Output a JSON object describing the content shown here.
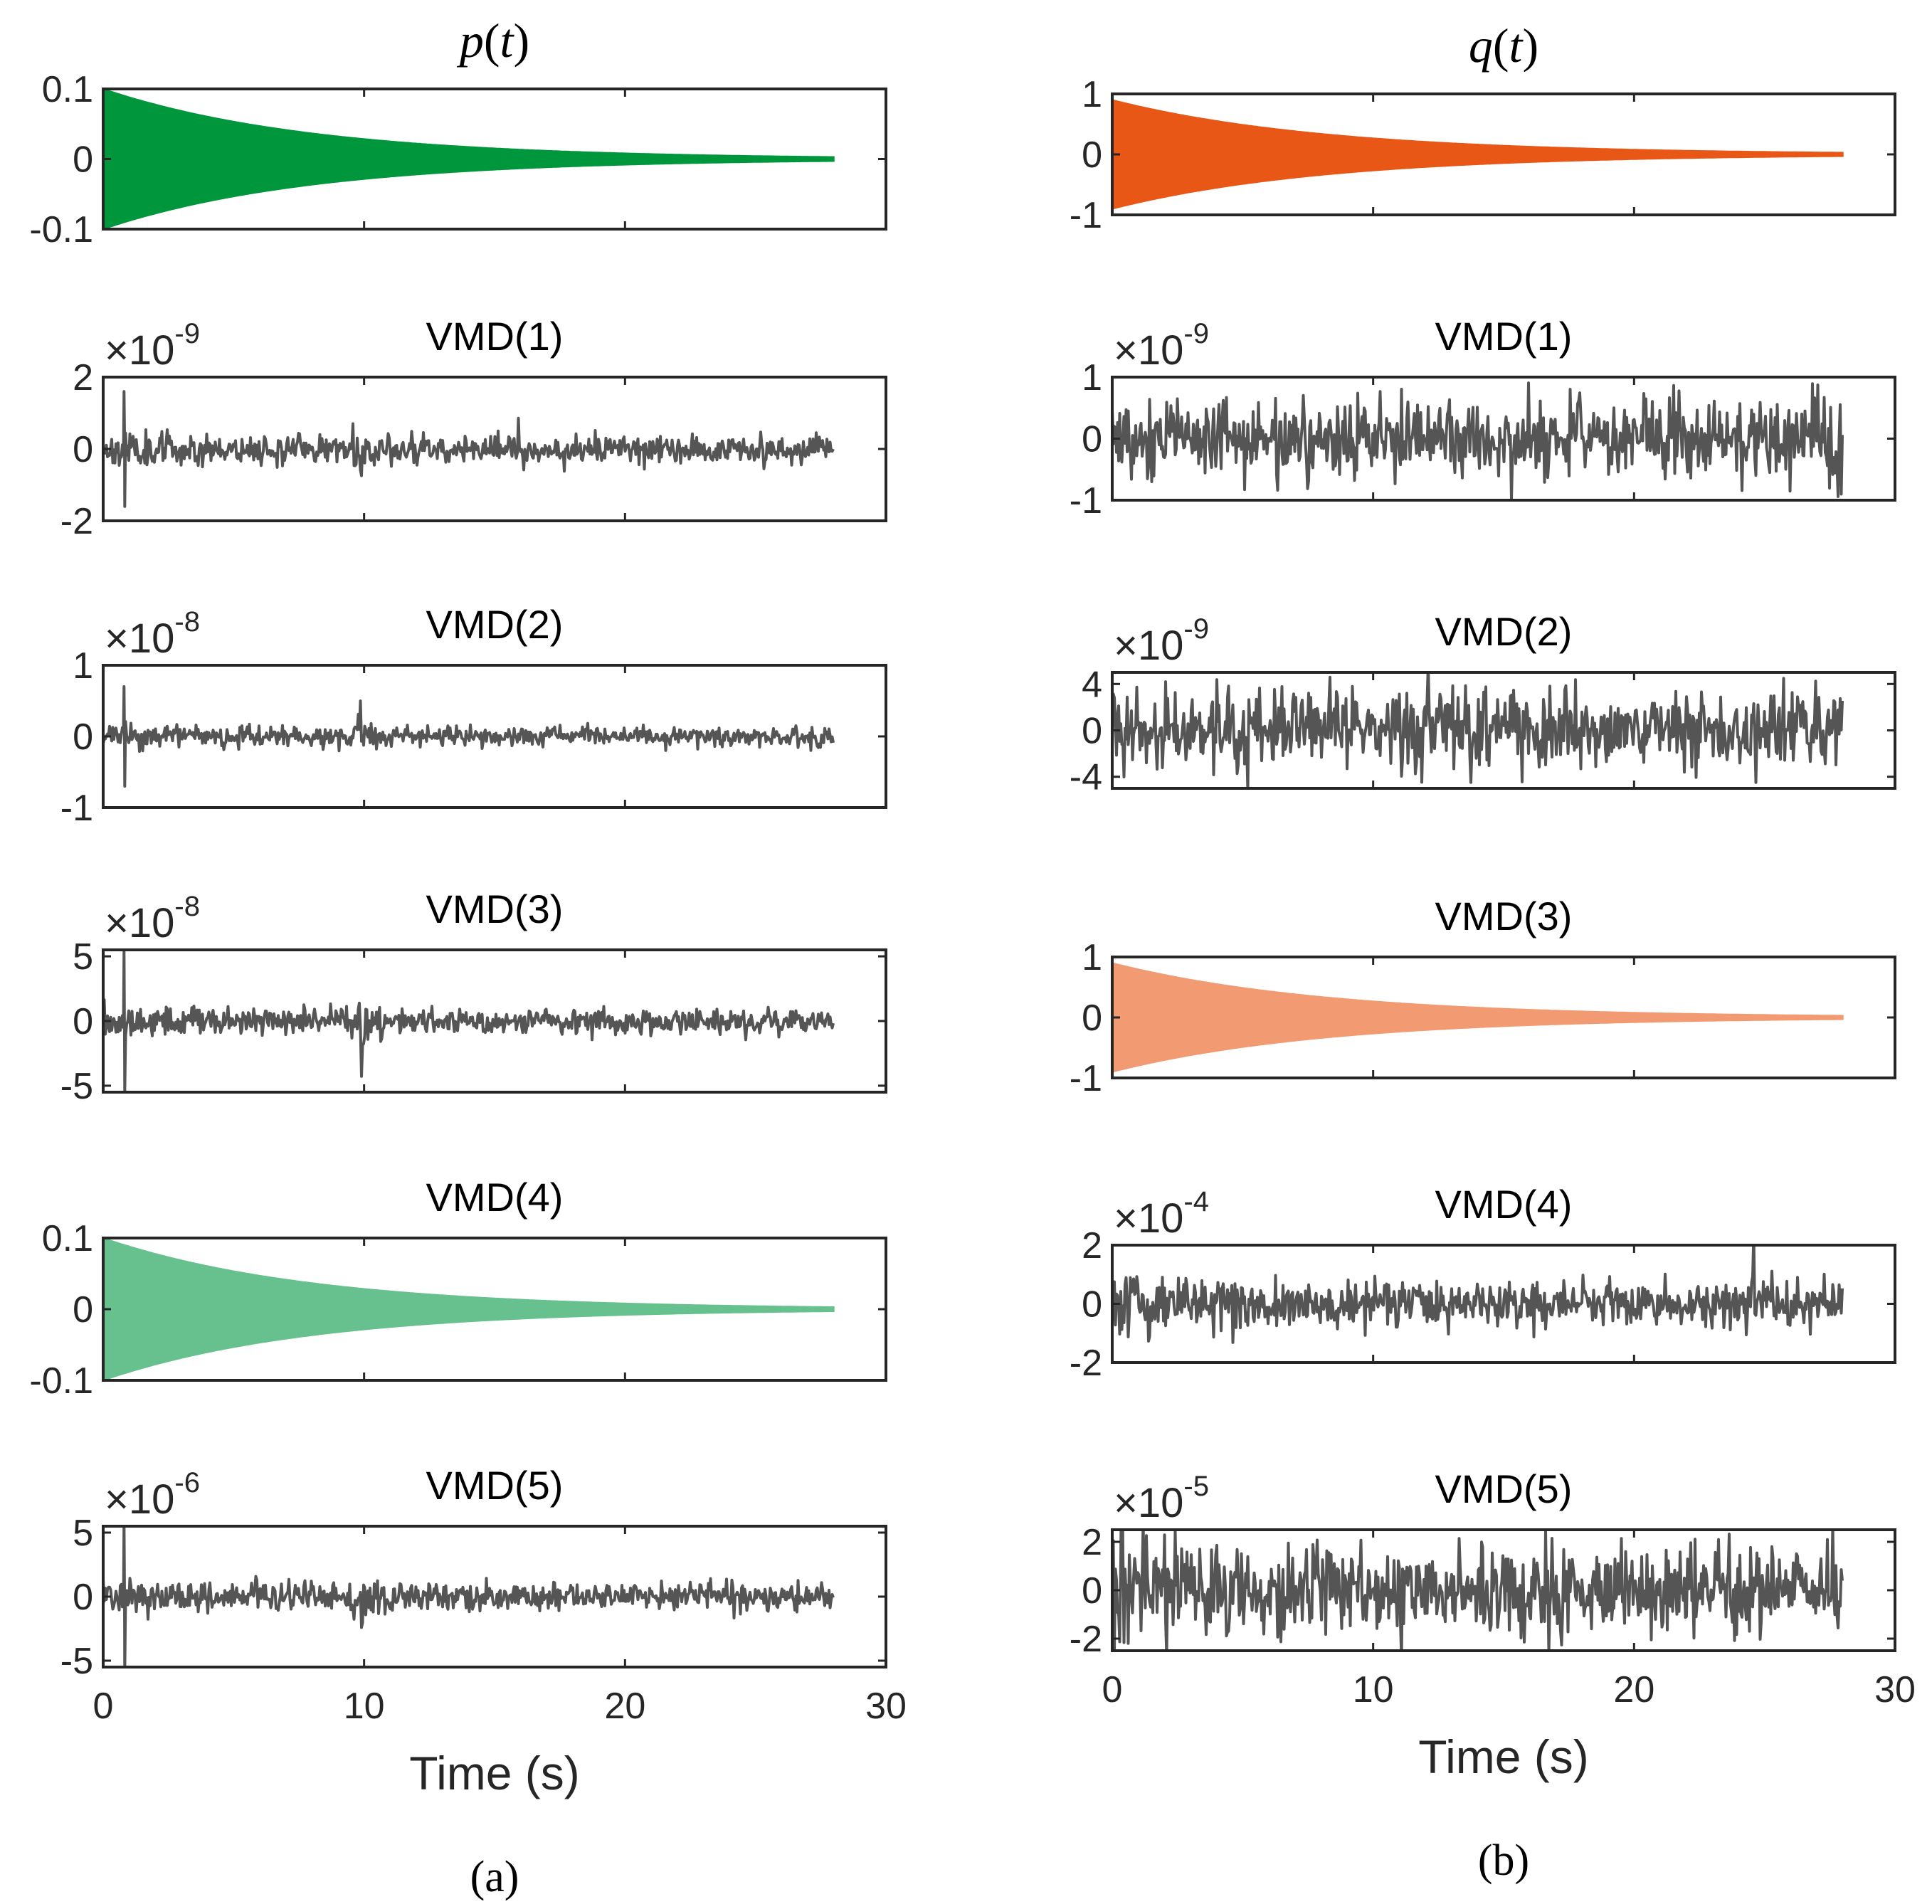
{
  "chart_data": [
    {
      "id": "a-p",
      "column": "a",
      "type": "line",
      "title": "p(t)",
      "title_style": "math",
      "signal": "decay",
      "color": "#00963C",
      "amplitude": 0.1,
      "envelope_end": 0.003,
      "t_end": 28,
      "ylim": [
        -0.1,
        0.1
      ],
      "yticks": [
        {
          "v": 0.1,
          "label": "0.1"
        },
        {
          "v": 0,
          "label": "0"
        },
        {
          "v": -0.1,
          "label": "-0.1"
        }
      ],
      "xlim": [
        0,
        30
      ],
      "xticks": [
        0,
        10,
        20,
        30
      ],
      "xticklabels": false
    },
    {
      "id": "a-vmd1",
      "column": "a",
      "type": "line",
      "title": "VMD(1)",
      "scale_factor": {
        "base": "×10",
        "exp": "-9"
      },
      "signal": "noise",
      "color": "#555555",
      "base_amp": 0.35,
      "decay": 0.3,
      "burst_at": 9.8,
      "spike_at": 0.8,
      "spike": 1.6,
      "t_end": 28,
      "seed": 11,
      "ylim": [
        -2,
        2
      ],
      "yticks": [
        {
          "v": 2,
          "label": "2"
        },
        {
          "v": 0,
          "label": "0"
        },
        {
          "v": -2,
          "label": "-2"
        }
      ],
      "xlim": [
        0,
        30
      ],
      "xticks": [
        0,
        10,
        20,
        30
      ],
      "xticklabels": false
    },
    {
      "id": "a-vmd2",
      "column": "a",
      "type": "line",
      "title": "VMD(2)",
      "scale_factor": {
        "base": "×10",
        "exp": "-8"
      },
      "signal": "noise",
      "color": "#555555",
      "base_amp": 0.12,
      "decay": 0.35,
      "burst_at": 9.8,
      "spike_at": 0.8,
      "spike": 0.7,
      "t_end": 28,
      "seed": 23,
      "ylim": [
        -1,
        1
      ],
      "yticks": [
        {
          "v": 1,
          "label": "1"
        },
        {
          "v": 0,
          "label": "0"
        },
        {
          "v": -1,
          "label": "-1"
        }
      ],
      "xlim": [
        0,
        30
      ],
      "xticks": [
        0,
        10,
        20,
        30
      ],
      "xticklabels": false
    },
    {
      "id": "a-vmd3",
      "column": "a",
      "type": "line",
      "title": "VMD(3)",
      "scale_factor": {
        "base": "×10",
        "exp": "-8"
      },
      "signal": "noise",
      "color": "#555555",
      "base_amp": 0.9,
      "decay": 0.35,
      "burst_at": 9.8,
      "spike_at": 0.8,
      "spike": 5.5,
      "t_end": 28,
      "seed": 37,
      "ylim": [
        -5.5,
        5.5
      ],
      "yticks": [
        {
          "v": 5,
          "label": "5"
        },
        {
          "v": 0,
          "label": "0"
        },
        {
          "v": -5,
          "label": "-5"
        }
      ],
      "xlim": [
        0,
        30
      ],
      "xticks": [
        0,
        10,
        20,
        30
      ],
      "xticklabels": false
    },
    {
      "id": "a-vmd4",
      "column": "a",
      "type": "line",
      "title": "VMD(4)",
      "signal": "decay",
      "color": "#66C18F",
      "amplitude": 0.1,
      "envelope_end": 0.003,
      "t_end": 28,
      "ylim": [
        -0.1,
        0.1
      ],
      "yticks": [
        {
          "v": 0.1,
          "label": "0.1"
        },
        {
          "v": 0,
          "label": "0"
        },
        {
          "v": -0.1,
          "label": "-0.1"
        }
      ],
      "xlim": [
        0,
        30
      ],
      "xticks": [
        0,
        10,
        20,
        30
      ],
      "xticklabels": false
    },
    {
      "id": "a-vmd5",
      "column": "a",
      "type": "line",
      "title": "VMD(5)",
      "scale_factor": {
        "base": "×10",
        "exp": "-6"
      },
      "signal": "noise",
      "color": "#555555",
      "base_amp": 1.0,
      "decay": 0.4,
      "burst_at": 9.8,
      "spike_at": 0.8,
      "spike": 6.0,
      "t_end": 28,
      "seed": 41,
      "ylim": [
        -5.5,
        5.5
      ],
      "yticks": [
        {
          "v": 5,
          "label": "5"
        },
        {
          "v": 0,
          "label": "0"
        },
        {
          "v": -5,
          "label": "-5"
        }
      ],
      "xlim": [
        0,
        30
      ],
      "xticks": [
        0,
        10,
        20,
        30
      ],
      "xticklabels": true,
      "xlabel": "Time (s)",
      "caption": "(a)"
    },
    {
      "id": "b-q",
      "column": "b",
      "type": "line",
      "title": "q(t)",
      "title_style": "math",
      "signal": "decay",
      "color": "#E85716",
      "amplitude": 0.9,
      "envelope_end": 0.03,
      "t_end": 28,
      "ylim": [
        -1,
        1
      ],
      "yticks": [
        {
          "v": 1,
          "label": "1"
        },
        {
          "v": 0,
          "label": "0"
        },
        {
          "v": -1,
          "label": "-1"
        }
      ],
      "xlim": [
        0,
        30
      ],
      "xticks": [
        0,
        10,
        20,
        30
      ],
      "xticklabels": false
    },
    {
      "id": "b-vmd1",
      "column": "b",
      "type": "line",
      "title": "VMD(1)",
      "scale_factor": {
        "base": "×10",
        "exp": "-9"
      },
      "signal": "noise",
      "color": "#555555",
      "base_amp": 0.6,
      "decay": 0.0,
      "burst_at": null,
      "spike_at": null,
      "spike": 0,
      "t_end": 28,
      "seed": 53,
      "ylim": [
        -1,
        1
      ],
      "yticks": [
        {
          "v": 1,
          "label": "1"
        },
        {
          "v": 0,
          "label": "0"
        },
        {
          "v": -1,
          "label": "-1"
        }
      ],
      "xlim": [
        0,
        30
      ],
      "xticks": [
        0,
        10,
        20,
        30
      ],
      "xticklabels": false
    },
    {
      "id": "b-vmd2",
      "column": "b",
      "type": "line",
      "title": "VMD(2)",
      "scale_factor": {
        "base": "×10",
        "exp": "-9"
      },
      "signal": "noise",
      "color": "#555555",
      "base_amp": 3.0,
      "decay": 0.0,
      "burst_at": null,
      "spike_at": null,
      "spike": 0,
      "t_end": 28,
      "seed": 67,
      "ylim": [
        -5,
        5
      ],
      "yticks": [
        {
          "v": 4,
          "label": "4"
        },
        {
          "v": 0,
          "label": "0"
        },
        {
          "v": -4,
          "label": "-4"
        }
      ],
      "xlim": [
        0,
        30
      ],
      "xticks": [
        0,
        10,
        20,
        30
      ],
      "xticklabels": false
    },
    {
      "id": "b-vmd3",
      "column": "b",
      "type": "line",
      "title": "VMD(3)",
      "signal": "decay",
      "color": "#F29A72",
      "amplitude": 0.9,
      "envelope_end": 0.03,
      "t_end": 28,
      "ylim": [
        -1,
        1
      ],
      "yticks": [
        {
          "v": 1,
          "label": "1"
        },
        {
          "v": 0,
          "label": "0"
        },
        {
          "v": -1,
          "label": "-1"
        }
      ],
      "xlim": [
        0,
        30
      ],
      "xticks": [
        0,
        10,
        20,
        30
      ],
      "xticklabels": false
    },
    {
      "id": "b-vmd4",
      "column": "b",
      "type": "line",
      "title": "VMD(4)",
      "scale_factor": {
        "base": "×10",
        "exp": "-4"
      },
      "signal": "noise",
      "color": "#555555",
      "base_amp": 0.75,
      "decay": 0.35,
      "burst_at": null,
      "spike_at": null,
      "spike": 0,
      "t_end": 28,
      "seed": 79,
      "ylim": [
        -2,
        2
      ],
      "yticks": [
        {
          "v": 2,
          "label": "2"
        },
        {
          "v": 0,
          "label": "0"
        },
        {
          "v": -2,
          "label": "-2"
        }
      ],
      "xlim": [
        0,
        30
      ],
      "xticks": [
        0,
        10,
        20,
        30
      ],
      "xticklabels": false
    },
    {
      "id": "b-vmd5",
      "column": "b",
      "type": "line",
      "title": "VMD(5)",
      "scale_factor": {
        "base": "×10",
        "exp": "-5"
      },
      "signal": "noise",
      "color": "#555555",
      "base_amp": 1.6,
      "decay": 0.45,
      "burst_at": null,
      "spike_at": null,
      "spike": 0,
      "t_end": 28,
      "seed": 97,
      "ylim": [
        -2.5,
        2.5
      ],
      "yticks": [
        {
          "v": 2,
          "label": "2"
        },
        {
          "v": 0,
          "label": "0"
        },
        {
          "v": -2,
          "label": "-2"
        }
      ],
      "xlim": [
        0,
        30
      ],
      "xticks": [
        0,
        10,
        20,
        30
      ],
      "xticklabels": true,
      "xlabel": "Time (s)",
      "caption": "(b)"
    }
  ]
}
